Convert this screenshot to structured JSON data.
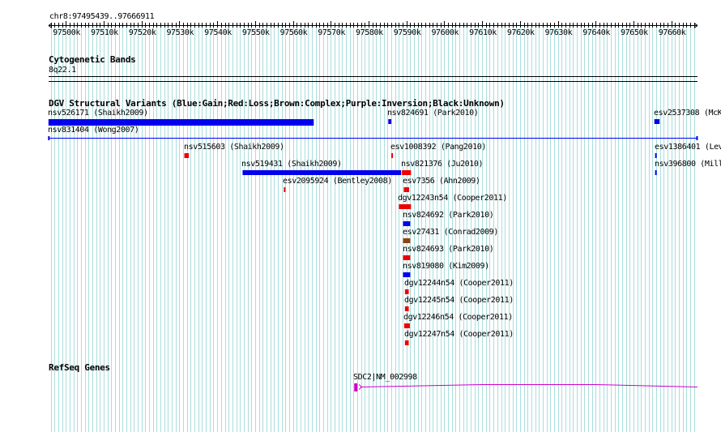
{
  "coordinate_range": "chr8:97495439..97666911",
  "ruler": {
    "start_bp": 97495439,
    "end_bp": 97666911,
    "tick_labels": [
      "97500k",
      "97510k",
      "97520k",
      "97530k",
      "97540k",
      "97550k",
      "97560k",
      "97570k",
      "97580k",
      "97590k",
      "97600k",
      "97610k",
      "97620k",
      "97630k",
      "97640k",
      "97650k",
      "97660k"
    ]
  },
  "tracks": {
    "cytoband": {
      "title": "Cytogenetic Bands",
      "band": "8q22.1"
    },
    "dgv": {
      "title": "DGV Structural Variants (Blue:Gain;Red:Loss;Brown:Complex;Purple:Inversion;Black:Unknown)"
    },
    "refseq": {
      "title": "RefSeq Genes"
    }
  },
  "colors": {
    "gain": "#0000ee",
    "loss": "#ee0000",
    "complex": "#8b4513",
    "gene": "#cc00cc",
    "grid": "#aadddd"
  },
  "variants": [
    {
      "label": "nsv526171 (Shaikh2009)",
      "start_kb": 97495.4,
      "end_kb": 97565.5,
      "type": "gain"
    },
    {
      "label": "nsv824691 (Park2010)",
      "start_kb": 97585.2,
      "end_kb": 97586.0,
      "type": "gain"
    },
    {
      "label": "esv2537308 (McK",
      "start_kb": 97655.5,
      "end_kb": 97656.9,
      "type": "gain"
    },
    {
      "label": "nsv831404 (Wong2007)",
      "start_kb": 97495.4,
      "end_kb": 97666.9,
      "type": "gain"
    },
    {
      "label": "nsv515603 (Shaikh2009)",
      "start_kb": 97531.3,
      "end_kb": 97532.5,
      "type": "loss"
    },
    {
      "label": "esv1008392 (Pang2010)",
      "start_kb": 97586.0,
      "end_kb": 97586.4,
      "type": "loss"
    },
    {
      "label": "esv1386401 (Lev",
      "start_kb": 97655.7,
      "end_kb": 97656.0,
      "type": "gain"
    },
    {
      "label": "nsv519431 (Shaikh2009)",
      "start_kb": 97546.7,
      "end_kb": 97588.6,
      "type": "gain"
    },
    {
      "label": "nsv821376 (Ju2010)",
      "start_kb": 97588.8,
      "end_kb": 97591.2,
      "type": "loss"
    },
    {
      "label": "nsv396800 (Mill",
      "start_kb": 97655.7,
      "end_kb": 97656.0,
      "type": "gain"
    },
    {
      "label": "esv2095924 (Bentley2008)",
      "start_kb": 97557.6,
      "end_kb": 97558.0,
      "type": "loss"
    },
    {
      "label": "esv7356 (Ahn2009)",
      "start_kb": 97589.3,
      "end_kb": 97590.7,
      "type": "loss"
    },
    {
      "label": "dgv12243n54 (Cooper2011)",
      "start_kb": 97588.0,
      "end_kb": 97591.2,
      "type": "loss"
    },
    {
      "label": "nsv824692 (Park2010)",
      "start_kb": 97589.1,
      "end_kb": 97591.0,
      "type": "gain"
    },
    {
      "label": "esv27431 (Conrad2009)",
      "start_kb": 97589.1,
      "end_kb": 97591.0,
      "type": "complex"
    },
    {
      "label": "nsv824693 (Park2010)",
      "start_kb": 97589.1,
      "end_kb": 97591.0,
      "type": "loss"
    },
    {
      "label": "nsv819080 (Kim2009)",
      "start_kb": 97589.1,
      "end_kb": 97591.0,
      "type": "gain"
    },
    {
      "label": "dgv12244n54 (Cooper2011)",
      "start_kb": 97589.6,
      "end_kb": 97590.6,
      "type": "loss"
    },
    {
      "label": "dgv12245n54 (Cooper2011)",
      "start_kb": 97589.6,
      "end_kb": 97590.6,
      "type": "loss"
    },
    {
      "label": "dgv12246n54 (Cooper2011)",
      "start_kb": 97589.4,
      "end_kb": 97590.9,
      "type": "loss"
    },
    {
      "label": "dgv12247n54 (Cooper2011)",
      "start_kb": 97589.6,
      "end_kb": 97590.6,
      "type": "loss"
    }
  ],
  "genes": [
    {
      "label": "SDC2|NM_002998",
      "start_kb": 97576.2,
      "end_kb": 97666.9,
      "strand": "+"
    }
  ]
}
